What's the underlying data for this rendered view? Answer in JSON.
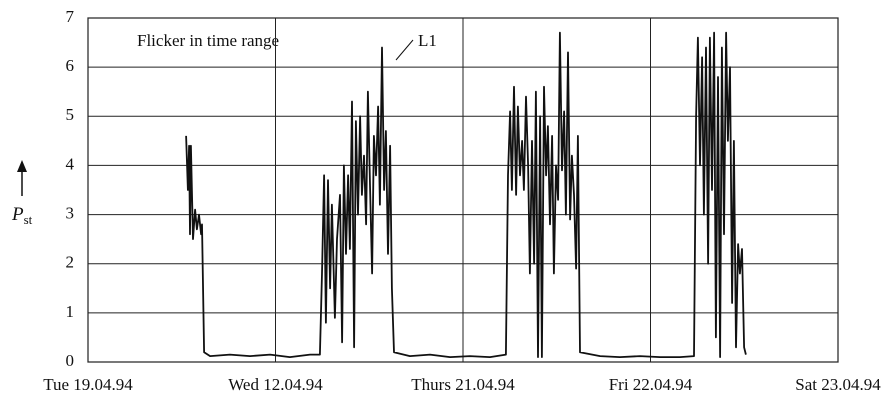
{
  "chart_data": {
    "type": "line",
    "title": "Flicker in time range",
    "ylabel": {
      "text": "P",
      "subscript": "st"
    },
    "xlim": [
      0,
      4
    ],
    "xticks": [
      {
        "value": 0,
        "label": "Tue 19.04.94"
      },
      {
        "value": 1,
        "label": "Wed 12.04.94"
      },
      {
        "value": 2,
        "label": "Thurs 21.04.94"
      },
      {
        "value": 3,
        "label": "Fri 22.04.94"
      },
      {
        "value": 4,
        "label": "Sat 23.04.94"
      }
    ],
    "ylim": [
      0,
      7
    ],
    "yticks": [
      0,
      1,
      2,
      3,
      4,
      5,
      6,
      7
    ],
    "grid": true,
    "series": [
      {
        "name": "L1",
        "color": "#111111",
        "x": [
          0.523,
          0.533,
          0.539,
          0.544,
          0.549,
          0.56,
          0.571,
          0.581,
          0.592,
          0.603,
          0.608,
          0.619,
          0.651,
          0.757,
          0.864,
          0.971,
          1.077,
          1.184,
          1.237,
          1.248,
          1.259,
          1.269,
          1.28,
          1.291,
          1.301,
          1.317,
          1.328,
          1.344,
          1.355,
          1.365,
          1.376,
          1.387,
          1.397,
          1.408,
          1.419,
          1.429,
          1.44,
          1.451,
          1.461,
          1.472,
          1.483,
          1.493,
          1.504,
          1.515,
          1.525,
          1.536,
          1.547,
          1.557,
          1.568,
          1.579,
          1.589,
          1.6,
          1.611,
          1.621,
          1.632,
          1.717,
          1.824,
          1.931,
          2.037,
          2.144,
          2.229,
          2.24,
          2.251,
          2.261,
          2.272,
          2.283,
          2.293,
          2.304,
          2.315,
          2.325,
          2.336,
          2.347,
          2.357,
          2.368,
          2.379,
          2.389,
          2.4,
          2.411,
          2.421,
          2.432,
          2.443,
          2.453,
          2.464,
          2.475,
          2.485,
          2.496,
          2.507,
          2.517,
          2.528,
          2.539,
          2.549,
          2.56,
          2.571,
          2.581,
          2.592,
          2.603,
          2.613,
          2.624,
          2.731,
          2.837,
          2.944,
          3.051,
          3.157,
          3.232,
          3.243,
          3.253,
          3.264,
          3.275,
          3.285,
          3.296,
          3.307,
          3.317,
          3.328,
          3.339,
          3.349,
          3.36,
          3.371,
          3.381,
          3.392,
          3.403,
          3.413,
          3.424,
          3.435,
          3.445,
          3.456,
          3.467,
          3.477,
          3.488,
          3.499,
          3.509
        ],
        "values": [
          4.6,
          3.5,
          4.4,
          2.6,
          4.4,
          2.5,
          3.1,
          2.7,
          3.0,
          2.6,
          2.8,
          0.2,
          0.12,
          0.15,
          0.12,
          0.15,
          0.1,
          0.15,
          0.15,
          1.8,
          3.8,
          0.8,
          3.7,
          1.5,
          3.2,
          0.9,
          2.5,
          3.4,
          0.4,
          4.0,
          2.2,
          3.8,
          2.3,
          5.3,
          0.3,
          4.9,
          3.0,
          5.0,
          3.4,
          4.2,
          2.8,
          5.5,
          3.6,
          1.8,
          4.6,
          3.8,
          5.2,
          3.2,
          6.4,
          3.5,
          4.7,
          2.2,
          4.4,
          1.5,
          0.2,
          0.12,
          0.15,
          0.1,
          0.12,
          0.1,
          0.15,
          3.8,
          5.1,
          3.5,
          5.6,
          3.4,
          5.2,
          3.8,
          4.5,
          3.5,
          5.4,
          4.0,
          1.8,
          4.5,
          2.0,
          5.5,
          0.1,
          5.0,
          0.1,
          5.6,
          3.8,
          4.8,
          2.8,
          4.6,
          1.8,
          4.0,
          3.3,
          6.7,
          3.9,
          5.1,
          3.0,
          6.3,
          2.9,
          4.2,
          3.4,
          1.9,
          4.6,
          0.2,
          0.12,
          0.1,
          0.12,
          0.1,
          0.1,
          0.12,
          5.0,
          6.6,
          4.0,
          6.2,
          3.0,
          6.4,
          2.0,
          6.6,
          3.5,
          6.7,
          0.5,
          5.8,
          0.1,
          6.4,
          2.6,
          6.7,
          4.5,
          6.0,
          1.2,
          4.5,
          0.3,
          2.4,
          1.8,
          2.3,
          0.3,
          0.15
        ]
      }
    ]
  }
}
